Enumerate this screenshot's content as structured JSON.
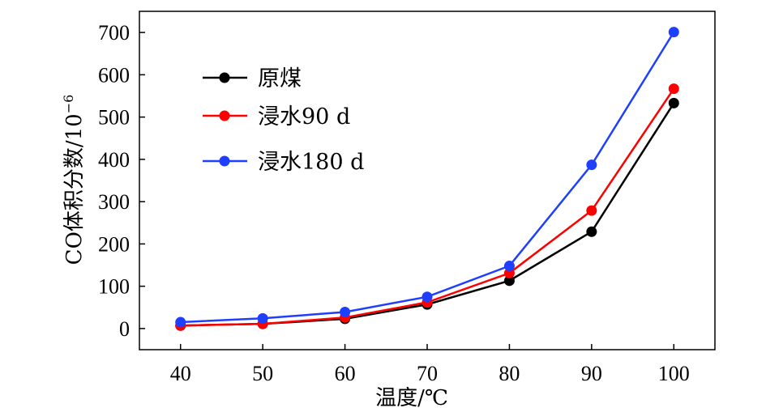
{
  "chart_data": {
    "type": "line",
    "x": [
      40,
      50,
      60,
      70,
      80,
      90,
      100
    ],
    "series": [
      {
        "name": "原煤",
        "color": "#000000",
        "values": [
          7,
          11,
          23,
          57,
          113,
          229,
          533
        ]
      },
      {
        "name": "浸水90 d",
        "color": "#ff0000",
        "values": [
          7,
          11,
          26,
          62,
          131,
          279,
          567
        ]
      },
      {
        "name": "浸水180 d",
        "color": "#1f3fff",
        "values": [
          15,
          24,
          39,
          75,
          148,
          387,
          701
        ]
      }
    ],
    "xlabel": "温度/℃",
    "ylabel": "CO体积分数/10",
    "ylabel_superscript": "−6",
    "xlim": [
      35,
      105
    ],
    "ylim": [
      -50,
      750
    ],
    "xticks": [
      40,
      50,
      60,
      70,
      80,
      90,
      100
    ],
    "yticks": [
      0,
      100,
      200,
      300,
      400,
      500,
      600,
      700
    ],
    "grid": false,
    "legend_position": "top-left"
  }
}
